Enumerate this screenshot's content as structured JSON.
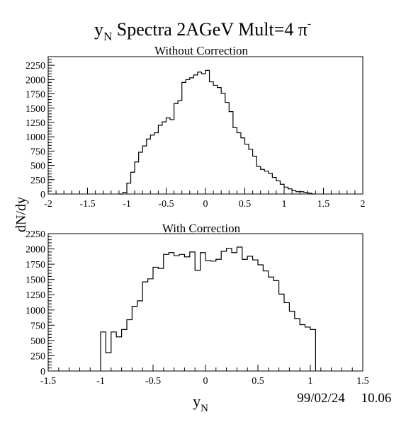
{
  "title": {
    "main": "y",
    "sub": "N",
    "rest": " Spectra 2AGeV Mult=4 π",
    "sup": "-"
  },
  "ylabel": "dN/dy",
  "xlabel": {
    "main": "y",
    "sub": "N"
  },
  "stamp": {
    "date": "99/02/24",
    "time": "10.06"
  },
  "chart_data": [
    {
      "type": "histogram",
      "title": "Without Correction",
      "xlim": [
        -2,
        2
      ],
      "ylim": [
        0,
        2400
      ],
      "xticks": [
        "-2",
        "-1.5",
        "-1",
        "-0.5",
        "0",
        "0.5",
        "1",
        "1.5",
        "2"
      ],
      "yticks": [
        "0",
        "250",
        "500",
        "750",
        "1000",
        "1250",
        "1500",
        "1750",
        "2000",
        "2250"
      ],
      "bin_width": 0.05,
      "x_start": -1.1,
      "values": [
        0,
        30,
        190,
        380,
        560,
        730,
        840,
        960,
        1030,
        1070,
        1200,
        1260,
        1330,
        1300,
        1580,
        1630,
        1950,
        2000,
        2030,
        2080,
        2130,
        2100,
        2160,
        1960,
        1900,
        1860,
        1760,
        1600,
        1440,
        1160,
        1070,
        980,
        870,
        780,
        660,
        480,
        430,
        400,
        360,
        290,
        230,
        170,
        120,
        90,
        60,
        40,
        40,
        30,
        15,
        0
      ]
    },
    {
      "type": "histogram",
      "title": "With Correction",
      "xlim": [
        -1.5,
        1.5
      ],
      "ylim": [
        0,
        2250
      ],
      "xticks": [
        "-1.5",
        "-1",
        "-0.5",
        "0",
        "0.5",
        "1",
        "1.5"
      ],
      "yticks": [
        "0",
        "250",
        "500",
        "750",
        "1000",
        "1250",
        "1500",
        "1750",
        "2000",
        "2250"
      ],
      "bin_width": 0.05,
      "x_start": -1.0,
      "values": [
        640,
        300,
        640,
        560,
        680,
        840,
        1060,
        1150,
        1460,
        1510,
        1700,
        1680,
        1910,
        1940,
        1890,
        1910,
        1870,
        1950,
        1650,
        1940,
        1810,
        1800,
        1830,
        1960,
        2010,
        1940,
        2030,
        1830,
        1880,
        1820,
        1740,
        1640,
        1540,
        1480,
        1260,
        1120,
        980,
        860,
        760,
        720,
        680
      ]
    }
  ]
}
